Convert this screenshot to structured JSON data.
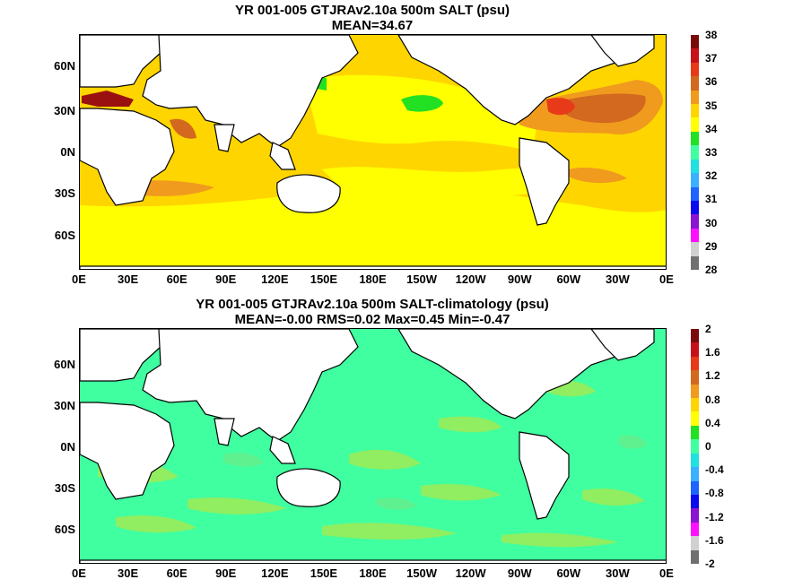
{
  "panels": [
    {
      "title_line1": "YR 001-005 GTJRAv2.10a 500m SALT (psu)",
      "title_line2": "MEAN=34.67",
      "lat_labels": [
        "60N",
        "30N",
        "0N",
        "30S",
        "60S"
      ],
      "lon_labels": [
        "0E",
        "30E",
        "60E",
        "90E",
        "120E",
        "150E",
        "180E",
        "150W",
        "120W",
        "90W",
        "60W",
        "30W",
        "0E"
      ],
      "colorbar": {
        "labels": [
          "38",
          "37",
          "36",
          "35",
          "34",
          "33",
          "32",
          "31",
          "30",
          "29",
          "28"
        ],
        "colors": [
          "#7a0a0a",
          "#c8101a",
          "#e83a18",
          "#d2691e",
          "#f09a1e",
          "#ffd500",
          "#ffff00",
          "#22e022",
          "#40ffa0",
          "#20e0e0",
          "#3ab0ff",
          "#1e64ff",
          "#0a0aee",
          "#8a14d0",
          "#ff10ff",
          "#d0d0d0",
          "#707070"
        ]
      },
      "field_colors": {
        "base": "#ffd500",
        "north_pacific": "#ffff00",
        "southern": "#ffff00",
        "fresh": "#22e022",
        "salty_a": "#f09a1e",
        "salty_b": "#d2691e",
        "salty_c": "#e83a18",
        "med": "#9a1010"
      }
    },
    {
      "title_line1": "YR 001-005 GTJRAv2.10a 500m SALT-climatology (psu)",
      "title_line2": "MEAN=-0.00   RMS=0.02   Max=0.45   Min=-0.47",
      "lat_labels": [
        "60N",
        "30N",
        "0N",
        "30S",
        "60S"
      ],
      "lon_labels": [
        "0E",
        "30E",
        "60E",
        "90E",
        "120E",
        "150E",
        "180E",
        "150W",
        "120W",
        "90W",
        "60W",
        "30W",
        "0E"
      ],
      "colorbar": {
        "labels": [
          "2",
          "1.6",
          "1.2",
          "0.8",
          "0.4",
          "0",
          "-0.4",
          "-0.8",
          "-1.2",
          "-1.6",
          "-2"
        ],
        "colors": [
          "#7a0a0a",
          "#c8101a",
          "#e83a18",
          "#d2691e",
          "#f09a1e",
          "#ffd500",
          "#ffff00",
          "#22e022",
          "#40ffa0",
          "#20e0e0",
          "#3ab0ff",
          "#1e64ff",
          "#0a0aee",
          "#8a14d0",
          "#ff10ff",
          "#d0d0d0",
          "#707070"
        ]
      },
      "field_colors": {
        "base": "#40ffa0",
        "patch": "#90ee60",
        "patch2": "#5ff090"
      }
    }
  ]
}
